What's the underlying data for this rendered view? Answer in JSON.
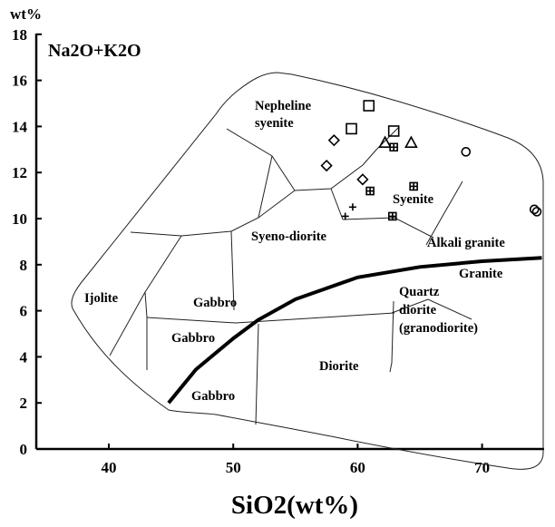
{
  "chart_data": {
    "type": "scatter",
    "title": "Na2O+K2O",
    "ylabel_unit": "wt%",
    "xlabel": "SiO2(wt%)",
    "xlim": [
      35,
      75
    ],
    "ylim": [
      0,
      18
    ],
    "xticks": [
      40,
      50,
      60,
      70
    ],
    "yticks": [
      0,
      2,
      4,
      6,
      8,
      10,
      12,
      14,
      16,
      18
    ],
    "fields": [
      {
        "label": "Nepheline syenite",
        "lines": [
          "Nepheline",
          "syenite"
        ]
      },
      {
        "label": "Syenite",
        "lines": [
          "Syenite"
        ]
      },
      {
        "label": "Alkali granite",
        "lines": [
          "Alkali granite"
        ]
      },
      {
        "label": "Syeno-diorite",
        "lines": [
          "Syeno-diorite"
        ]
      },
      {
        "label": "Granite",
        "lines": [
          "Granite"
        ]
      },
      {
        "label": "Ijolite",
        "lines": [
          "Ijolite"
        ]
      },
      {
        "label": "Gabbro",
        "lines": [
          "Gabbro"
        ]
      },
      {
        "label": "Quartz diorite (granodiorite)",
        "lines": [
          "Quartz",
          "diorite",
          "(granodiorite)"
        ]
      },
      {
        "label": "Gabbro",
        "lines": [
          "Gabbro"
        ]
      },
      {
        "label": "Diorite",
        "lines": [
          "Diorite"
        ]
      },
      {
        "label": "Gabbro",
        "lines": [
          "Gabbro"
        ]
      }
    ],
    "series": [
      {
        "symbol": "square",
        "points": [
          [
            60.9,
            14.9
          ],
          [
            59.5,
            13.9
          ],
          [
            62.9,
            13.8
          ]
        ]
      },
      {
        "symbol": "diamond",
        "points": [
          [
            58.1,
            13.4
          ],
          [
            57.5,
            12.3
          ],
          [
            60.4,
            11.7
          ]
        ]
      },
      {
        "symbol": "triangle",
        "points": [
          [
            62.2,
            13.3
          ],
          [
            64.3,
            13.3
          ]
        ]
      },
      {
        "symbol": "boxed-plus",
        "points": [
          [
            62.9,
            13.1
          ],
          [
            61.0,
            11.2
          ],
          [
            64.5,
            11.4
          ],
          [
            62.8,
            10.1
          ]
        ]
      },
      {
        "symbol": "circle",
        "points": [
          [
            68.7,
            12.9
          ],
          [
            74.2,
            10.4
          ],
          [
            74.4,
            10.3
          ]
        ]
      },
      {
        "symbol": "plus",
        "points": [
          [
            59.0,
            10.1
          ],
          [
            59.6,
            10.5
          ]
        ]
      }
    ],
    "alkaline_subalkaline_divide": [
      [
        44.8,
        2.0
      ],
      [
        47.0,
        3.45
      ],
      [
        50.0,
        4.8
      ],
      [
        52.0,
        5.6
      ],
      [
        55.0,
        6.5
      ],
      [
        60.0,
        7.45
      ],
      [
        65.0,
        7.9
      ],
      [
        70.0,
        8.15
      ],
      [
        74.8,
        8.3
      ]
    ]
  }
}
